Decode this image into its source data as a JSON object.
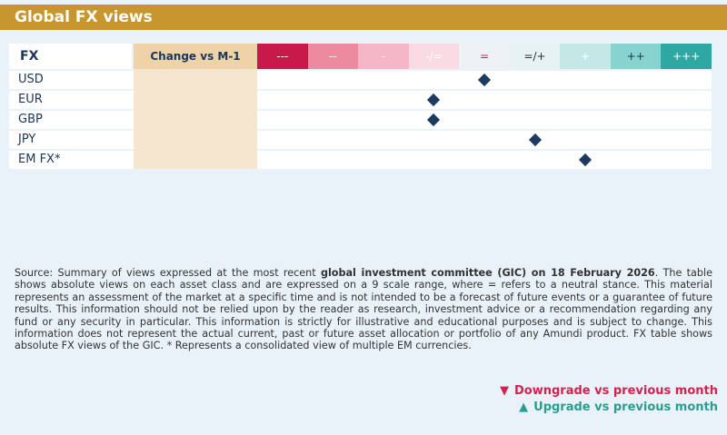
{
  "header": {
    "title": "Global FX views"
  },
  "table": {
    "columns": [
      "FX",
      "Change vs M-1"
    ],
    "scale": [
      {
        "label": "---",
        "color": "#c8194a",
        "text_color": "#ffffff"
      },
      {
        "label": "--",
        "color": "#ec8aa0",
        "text_color": "#ffffff"
      },
      {
        "label": "-",
        "color": "#f5b6c5",
        "text_color": "#ffffff"
      },
      {
        "label": "-/=",
        "color": "#fbdbe3",
        "text_color": "#ffffff"
      },
      {
        "label": "=",
        "color": "#eef2f5",
        "text_color": "#d4224f"
      },
      {
        "label": "=/+",
        "color": "#e6f2f4",
        "text_color": "#333333"
      },
      {
        "label": "+",
        "color": "#c3e8e6",
        "text_color": "#ffffff"
      },
      {
        "label": "++",
        "color": "#86d3cf",
        "text_color": "#1d3557"
      },
      {
        "label": "+++",
        "color": "#2ea8a2",
        "text_color": "#ffffff"
      }
    ],
    "rows": [
      {
        "label": "USD",
        "position": 4
      },
      {
        "label": "EUR",
        "position": 3
      },
      {
        "label": "GBP",
        "position": 3
      },
      {
        "label": "JPY",
        "position": 5
      },
      {
        "label": "EM FX*",
        "position": 6
      }
    ]
  },
  "source": [
    "Source: Summary of views expressed at the most recent ",
    "global investment committee (GIC) on 18 February 2026",
    ". The table shows absolute views on each asset class and are expressed on a 9 scale range, where = refers to a neutral stance. This material represents an assessment of the market at a specific time and is not intended to be a forecast of future events or a guarantee of future results. This information should not be relied upon by the reader as research, investment advice or a recommendation regarding any fund or any security in particular. This information is strictly for illustrative and educational purposes and is subject to change. This information does not represent the actual current, past or future asset allocation or portfolio of any Amundi product. FX table shows absolute FX views of the GIC. * Represents a consolidated view of multiple EM currencies."
  ],
  "legend": [
    {
      "symbol": "▼",
      "label": "Downgrade vs previous month",
      "color": "#d4224f"
    },
    {
      "symbol": "▲",
      "label": "Upgrade vs previous month",
      "color": "#2a9d8f"
    }
  ]
}
